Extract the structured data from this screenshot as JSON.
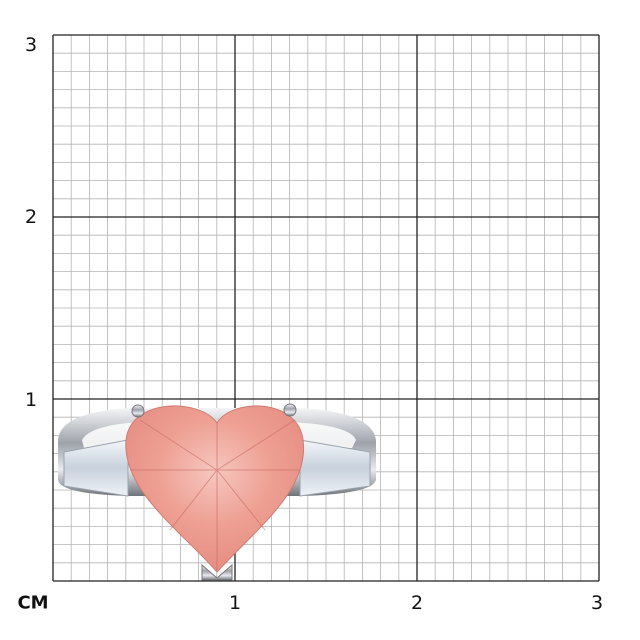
{
  "scale": {
    "unit_label": "CM",
    "x_ticks": [
      "1",
      "2",
      "3"
    ],
    "y_ticks": [
      "1",
      "2",
      "3"
    ],
    "range_cm": [
      0,
      3
    ],
    "minor_divisions_per_cm": 10
  },
  "colors": {
    "minor_grid": "#b4b4b4",
    "major_grid": "#222222",
    "gem": "#f0a59a",
    "metal": "#c8ccd2"
  },
  "product": {
    "description_icon": "heart-cut-pink-gem-ring-icon"
  }
}
